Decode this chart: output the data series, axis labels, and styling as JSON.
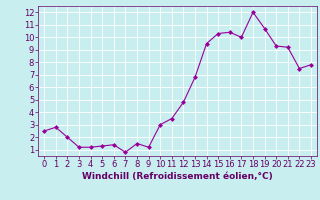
{
  "x": [
    0,
    1,
    2,
    3,
    4,
    5,
    6,
    7,
    8,
    9,
    10,
    11,
    12,
    13,
    14,
    15,
    16,
    17,
    18,
    19,
    20,
    21,
    22,
    23
  ],
  "y": [
    2.5,
    2.8,
    2.0,
    1.2,
    1.2,
    1.3,
    1.4,
    0.8,
    1.5,
    1.2,
    3.0,
    3.5,
    4.8,
    6.8,
    9.5,
    10.3,
    10.4,
    10.0,
    12.0,
    10.7,
    9.3,
    9.2,
    7.5,
    7.8
  ],
  "line_color": "#990099",
  "marker": "D",
  "marker_size": 2,
  "linewidth": 0.8,
  "xlabel": "Windchill (Refroidissement éolien,°C)",
  "xlim": [
    -0.5,
    23.5
  ],
  "ylim": [
    0.5,
    12.5
  ],
  "yticks": [
    1,
    2,
    3,
    4,
    5,
    6,
    7,
    8,
    9,
    10,
    11,
    12
  ],
  "xticks": [
    0,
    1,
    2,
    3,
    4,
    5,
    6,
    7,
    8,
    9,
    10,
    11,
    12,
    13,
    14,
    15,
    16,
    17,
    18,
    19,
    20,
    21,
    22,
    23
  ],
  "bg_color": "#c8eef0",
  "grid_color": "#ffffff",
  "line_border_color": "#660066",
  "xlabel_fontsize": 6.5,
  "tick_fontsize": 6
}
